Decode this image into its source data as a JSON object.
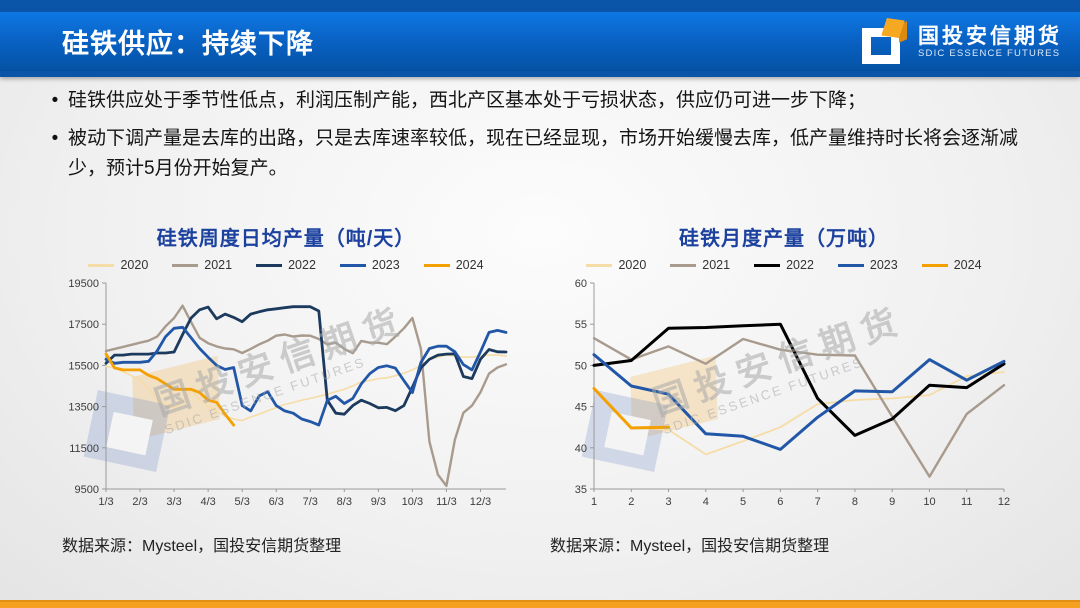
{
  "header": {
    "title": "硅铁供应：持续下降",
    "logo_cn": "国投安信期货",
    "logo_en": "SDIC ESSENCE FUTURES"
  },
  "bullets": [
    "硅铁供应处于季节性低点，利润压制产能，西北产区基本处于亏损状态，供应仍可进一步下降；",
    "被动下调产量是去库的出路，只是去库速率较低，现在已经显现，市场开始缓慢去库，低产量维持时长将会逐渐减少，预计5月份开始复产。"
  ],
  "watermark": {
    "cn": "国投安信期货",
    "en": "SDIC ESSENCE FUTURES"
  },
  "sources": {
    "left": "数据来源：Mysteel，国投安信期货整理",
    "right": "数据来源：Mysteel，国投安信期货整理"
  },
  "colors": {
    "header_top": "#0a55a8",
    "header_band_light": "#0d78e4",
    "header_band_dark": "#0452a4",
    "footer_orange": "#f6a01f",
    "chart_title_blue": "#1c419e"
  },
  "chart_data": [
    {
      "type": "line",
      "title": "硅铁周度日均产量（吨/天）",
      "xlabel": "",
      "ylabel": "",
      "ylim": [
        9500,
        19500
      ],
      "yticks": [
        9500,
        11500,
        13500,
        15500,
        17500,
        19500
      ],
      "x_tick_labels": [
        "1/3",
        "2/3",
        "3/3",
        "4/3",
        "5/3",
        "6/3",
        "7/3",
        "8/3",
        "9/3",
        "10/3",
        "11/3",
        "12/3"
      ],
      "x_tick_every": 4,
      "points_per_series": 48,
      "grid": false,
      "legend_position": "top",
      "pad_left": 48,
      "series": [
        {
          "name": "2020",
          "color": "#f6dca6",
          "width": 1.6,
          "values": [
            15450,
            15380,
            15200,
            15000,
            14800,
            14340,
            13810,
            13600,
            13440,
            13700,
            14340,
            13800,
            13500,
            13290,
            13030,
            12900,
            12820,
            13000,
            13130,
            13300,
            13450,
            13600,
            13700,
            13810,
            13900,
            14000,
            14100,
            14230,
            14340,
            14500,
            14700,
            14760,
            14860,
            14900,
            15000,
            15120,
            15280,
            15500,
            15800,
            15900,
            16000,
            15950,
            15900,
            15900,
            15950,
            16000,
            16000,
            15950
          ]
        },
        {
          "name": "2021",
          "color": "#a89b8d",
          "width": 2.4,
          "values": [
            16200,
            16300,
            16400,
            16500,
            16600,
            16700,
            16900,
            17400,
            17800,
            18400,
            17600,
            16840,
            16580,
            16420,
            16320,
            16280,
            16100,
            16300,
            16520,
            16700,
            16940,
            17000,
            16900,
            16950,
            16940,
            16780,
            16520,
            16600,
            16300,
            16090,
            16690,
            16600,
            16600,
            16530,
            16900,
            17300,
            17800,
            16300,
            11800,
            10200,
            9650,
            11900,
            13200,
            13550,
            14200,
            15100,
            15400,
            15550
          ]
        },
        {
          "name": "2022",
          "color": "#1c3a5e",
          "width": 2.8,
          "values": [
            15600,
            16000,
            16000,
            16050,
            16050,
            16050,
            16100,
            16100,
            16150,
            17000,
            17800,
            18200,
            18330,
            17760,
            17990,
            17830,
            17620,
            17990,
            18100,
            18200,
            18250,
            18300,
            18350,
            18350,
            18350,
            18140,
            13810,
            13180,
            13130,
            13550,
            13810,
            13650,
            13440,
            13460,
            13300,
            13550,
            14440,
            15380,
            15800,
            16000,
            16050,
            16060,
            14960,
            14860,
            15800,
            16270,
            16160,
            16150
          ]
        },
        {
          "name": "2023",
          "color": "#2257a8",
          "width": 2.8,
          "values": [
            15800,
            15600,
            15650,
            15650,
            15650,
            15700,
            16200,
            16900,
            17300,
            17350,
            16840,
            16320,
            15900,
            15500,
            15300,
            15400,
            13550,
            13290,
            14020,
            14230,
            13550,
            13290,
            13180,
            12900,
            12770,
            12600,
            13800,
            14000,
            13650,
            13900,
            14600,
            15100,
            15400,
            15480,
            15370,
            14760,
            14180,
            15640,
            16320,
            16430,
            16430,
            16160,
            15540,
            15280,
            16160,
            17100,
            17200,
            17100
          ]
        },
        {
          "name": "2024",
          "color": "#f3a000",
          "width": 2.8,
          "values": [
            16060,
            15380,
            15280,
            15280,
            15280,
            15020,
            14860,
            14600,
            14340,
            14340,
            14340,
            14180,
            13810,
            13710,
            13130,
            12600
          ]
        }
      ]
    },
    {
      "type": "line",
      "title": "硅铁月度产量（万吨）",
      "xlabel": "",
      "ylabel": "",
      "ylim": [
        35,
        60
      ],
      "yticks": [
        35,
        40,
        45,
        50,
        55,
        60
      ],
      "x_tick_labels": [
        "1",
        "2",
        "3",
        "4",
        "5",
        "6",
        "7",
        "8",
        "9",
        "10",
        "11",
        "12"
      ],
      "x_tick_every": 1,
      "points_per_series": 12,
      "grid": false,
      "legend_position": "top",
      "pad_left": 38,
      "series": [
        {
          "name": "2020",
          "color": "#f6dca6",
          "width": 1.8,
          "values": [
            47.3,
            42.5,
            42.2,
            39.2,
            40.8,
            42.5,
            45.3,
            45.8,
            46.0,
            46.4,
            48.7,
            49.2
          ]
        },
        {
          "name": "2021",
          "color": "#a89b8d",
          "width": 2.4,
          "values": [
            53.3,
            50.7,
            52.3,
            50.2,
            53.2,
            51.9,
            51.3,
            51.2,
            43.8,
            36.5,
            44.1,
            47.6
          ]
        },
        {
          "name": "2022",
          "color": "#000000",
          "width": 3,
          "values": [
            50.0,
            50.6,
            54.5,
            54.6,
            54.8,
            55.0,
            46.0,
            41.5,
            43.5,
            47.6,
            47.3,
            50.2
          ]
        },
        {
          "name": "2023",
          "color": "#2257a8",
          "width": 3,
          "values": [
            51.3,
            47.5,
            46.5,
            41.7,
            41.4,
            39.8,
            43.7,
            46.9,
            46.8,
            50.7,
            48.2,
            50.5
          ]
        },
        {
          "name": "2024",
          "color": "#f3a000",
          "width": 3,
          "values": [
            47.2,
            42.4,
            42.5
          ]
        }
      ]
    }
  ]
}
